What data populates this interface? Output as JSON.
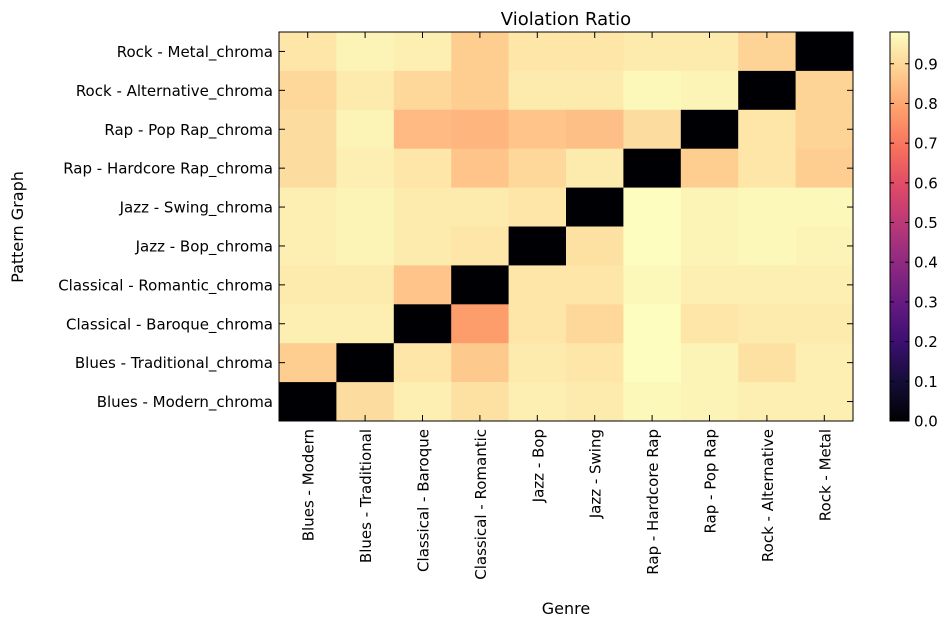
{
  "chart_data": {
    "type": "heatmap",
    "title": "Violation Ratio",
    "xlabel": "Genre",
    "ylabel": "Pattern Graph",
    "x_categories": [
      "Blues - Modern",
      "Blues - Traditional",
      "Classical - Baroque",
      "Classical - Romantic",
      "Jazz - Bop",
      "Jazz - Swing",
      "Rap - Hardcore Rap",
      "Rap - Pop Rap",
      "Rock - Alternative",
      "Rock - Metal"
    ],
    "y_categories_top_to_bottom": [
      "Rock - Metal_chroma",
      "Rock - Alternative_chroma",
      "Rap - Pop Rap_chroma",
      "Rap - Hardcore Rap_chroma",
      "Jazz - Swing_chroma",
      "Jazz - Bop_chroma",
      "Classical - Romantic_chroma",
      "Classical - Baroque_chroma",
      "Blues - Traditional_chroma",
      "Blues - Modern_chroma"
    ],
    "values_top_to_bottom": [
      [
        0.93,
        0.96,
        0.95,
        0.88,
        0.93,
        0.93,
        0.94,
        0.94,
        0.89,
        0.0
      ],
      [
        0.9,
        0.94,
        0.9,
        0.88,
        0.94,
        0.94,
        0.97,
        0.96,
        0.0,
        0.89
      ],
      [
        0.91,
        0.96,
        0.84,
        0.83,
        0.86,
        0.85,
        0.91,
        0.0,
        0.93,
        0.89
      ],
      [
        0.91,
        0.95,
        0.93,
        0.86,
        0.9,
        0.94,
        0.0,
        0.88,
        0.93,
        0.88
      ],
      [
        0.95,
        0.96,
        0.94,
        0.94,
        0.93,
        0.0,
        0.99,
        0.96,
        0.97,
        0.97
      ],
      [
        0.95,
        0.96,
        0.94,
        0.93,
        0.0,
        0.92,
        0.98,
        0.96,
        0.97,
        0.96
      ],
      [
        0.94,
        0.94,
        0.86,
        0.0,
        0.93,
        0.93,
        0.97,
        0.95,
        0.95,
        0.95
      ],
      [
        0.95,
        0.95,
        0.0,
        0.78,
        0.93,
        0.9,
        0.99,
        0.93,
        0.94,
        0.94
      ],
      [
        0.88,
        0.0,
        0.93,
        0.87,
        0.94,
        0.93,
        0.98,
        0.96,
        0.92,
        0.95
      ],
      [
        0.0,
        0.91,
        0.95,
        0.92,
        0.95,
        0.94,
        0.97,
        0.96,
        0.95,
        0.95
      ]
    ],
    "colormap": "magma",
    "vmin": 0.0,
    "vmax": 0.98,
    "colorbar_ticks": [
      "0.0",
      "0.1",
      "0.2",
      "0.3",
      "0.4",
      "0.5",
      "0.6",
      "0.7",
      "0.8",
      "0.9"
    ],
    "colorbar_tick_values": [
      0.0,
      0.1,
      0.2,
      0.3,
      0.4,
      0.5,
      0.6,
      0.7,
      0.8,
      0.9
    ]
  }
}
